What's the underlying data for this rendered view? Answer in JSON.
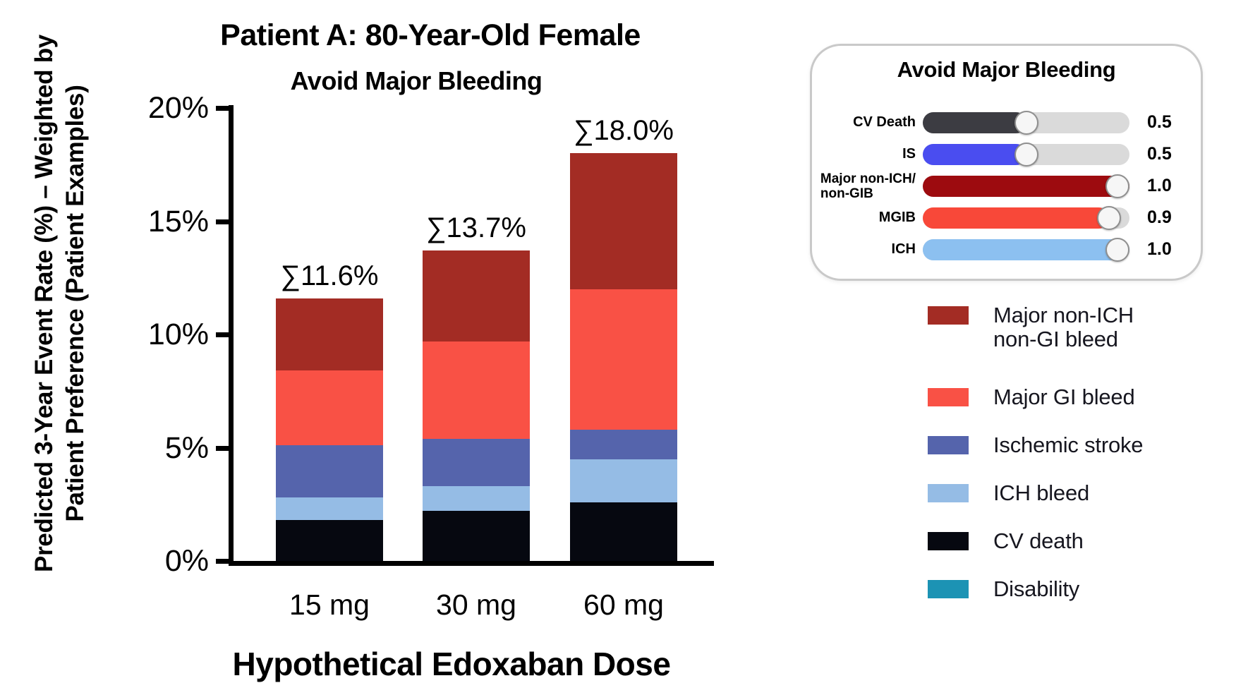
{
  "chart_data": {
    "type": "bar",
    "stacked": true,
    "title": "Patient A: 80-Year-Old Female",
    "subtitle": "Avoid Major Bleeding",
    "xlabel": "Hypothetical Edoxaban Dose",
    "ylabel_lines": [
      "Predicted 3-Year Event Rate (%) – Weighted by",
      "Patient Preference (Patient Examples)"
    ],
    "categories": [
      "15 mg",
      "30 mg",
      "60 mg"
    ],
    "ylim": [
      0,
      20
    ],
    "grid": false,
    "legend_position": "right",
    "ytick_values": [
      0,
      5,
      10,
      15,
      20
    ],
    "ytick_labels": [
      "0%",
      "5%",
      "10%",
      "15%",
      "20%"
    ],
    "totals": [
      11.6,
      13.7,
      18.0
    ],
    "total_labels": [
      "∑11.6%",
      "∑13.7%",
      "∑18.0%"
    ],
    "series_order_note": "bottom to top of each stacked bar",
    "series": [
      {
        "name": "CV death",
        "color": "#060810",
        "values": [
          1.8,
          2.2,
          2.6
        ]
      },
      {
        "name": "ICH bleed",
        "color": "#95BCE5",
        "values": [
          1.0,
          1.1,
          1.9
        ]
      },
      {
        "name": "Ischemic stroke",
        "color": "#5564AC",
        "values": [
          2.3,
          2.1,
          1.3
        ]
      },
      {
        "name": "Major GI bleed",
        "color": "#F95145",
        "values": [
          3.3,
          4.3,
          6.2
        ]
      },
      {
        "name": "Major non-ICH non-GI bleed",
        "color": "#A32C24",
        "values": [
          3.2,
          4.0,
          6.0
        ]
      }
    ]
  },
  "preference_panel": {
    "title": "Avoid Major Bleeding",
    "track_color": "#DADADA",
    "sliders": [
      {
        "label_lines": [
          "CV Death"
        ],
        "value": 0.5,
        "value_label": "0.5",
        "color": "#3C3C42"
      },
      {
        "label_lines": [
          "IS"
        ],
        "value": 0.5,
        "value_label": "0.5",
        "color": "#4A4DF0"
      },
      {
        "label_lines": [
          "Major non-ICH/",
          "non-GIB"
        ],
        "value": 1.0,
        "value_label": "1.0",
        "color": "#9D0B0F"
      },
      {
        "label_lines": [
          "MGIB"
        ],
        "value": 0.9,
        "value_label": "0.9",
        "color": "#F84839"
      },
      {
        "label_lines": [
          "ICH"
        ],
        "value": 1.0,
        "value_label": "1.0",
        "color": "#8CC0F0"
      }
    ]
  },
  "legend": {
    "items": [
      {
        "label_lines": [
          "Major non-ICH",
          "non-GI bleed"
        ],
        "color": "#A32C24"
      },
      {
        "label_lines": [
          "Major GI bleed"
        ],
        "color": "#F95145"
      },
      {
        "label_lines": [
          "Ischemic stroke"
        ],
        "color": "#5564AC"
      },
      {
        "label_lines": [
          "ICH bleed"
        ],
        "color": "#95BCE5"
      },
      {
        "label_lines": [
          "CV death"
        ],
        "color": "#060810"
      },
      {
        "label_lines": [
          "Disability"
        ],
        "color": "#1C93B4"
      }
    ]
  }
}
